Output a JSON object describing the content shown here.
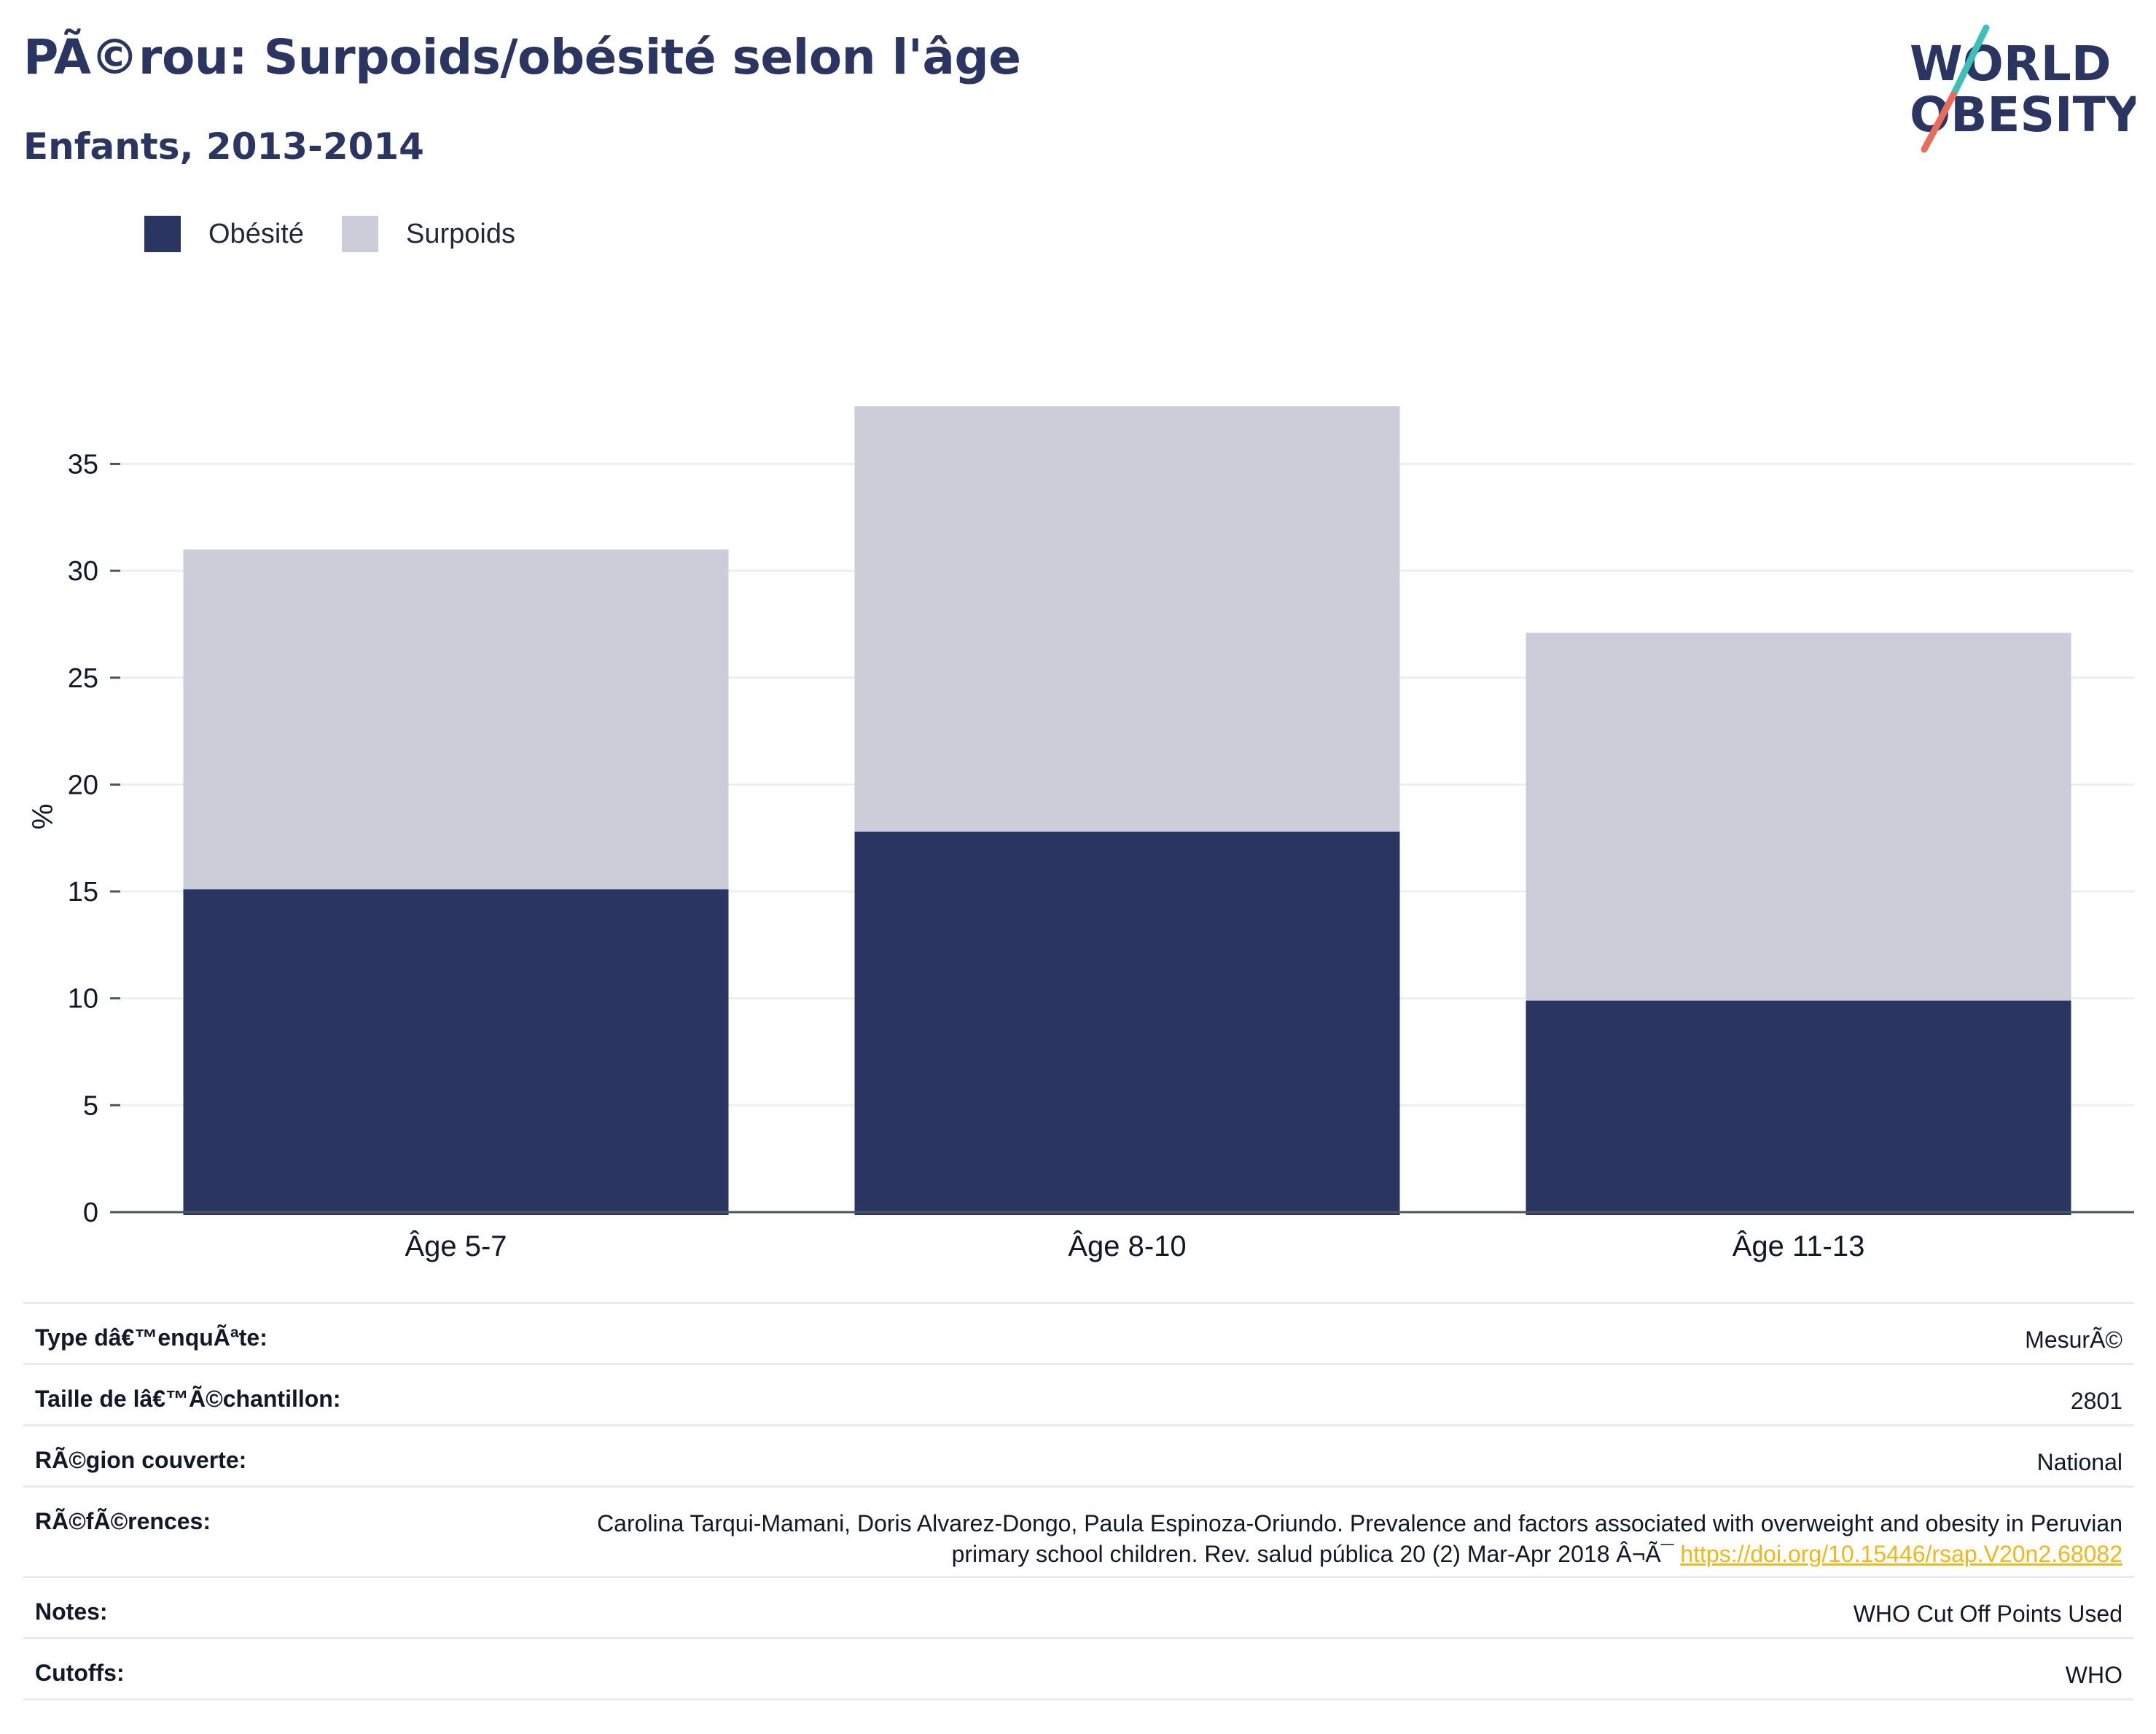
{
  "header": {
    "title": "PÃ©rou: Surpoids/obésité selon l'âge",
    "subtitle": "Enfants, 2013-2014"
  },
  "logo": {
    "line1": "WORLD",
    "line2": "OBESITY",
    "colors": {
      "text": "#2a3562",
      "slash_top": "#3cbfb8",
      "slash_bottom": "#ea6b5a"
    }
  },
  "colors": {
    "obesity": "#2a3562",
    "overweight": "#cbcdd8",
    "grid": "#eceef3",
    "axis": "#4b5563",
    "link": "#f2b619"
  },
  "chart_data": {
    "type": "bar",
    "stacked": true,
    "categories": [
      "Âge 5-7",
      "Âge 8-10",
      "Âge 11-13"
    ],
    "series": [
      {
        "name": "Obésité",
        "values": [
          15.1,
          17.8,
          9.9
        ],
        "color": "#2a3562"
      },
      {
        "name": "Surpoids",
        "values": [
          15.9,
          19.9,
          17.2
        ],
        "color": "#cbcdd8"
      }
    ],
    "totals": [
      31.0,
      37.7,
      27.1
    ],
    "ylabel": "%",
    "xlabel": "",
    "ylim": [
      0,
      40
    ],
    "yticks": [
      0,
      5,
      10,
      15,
      20,
      25,
      30,
      35
    ],
    "grid": true,
    "legend_position": "top-left"
  },
  "info": {
    "survey_type": {
      "label": "Type dâ€™enquÃªte:",
      "value": "MesurÃ©"
    },
    "sample_size": {
      "label": "Taille de lâ€™Ã©chantillon:",
      "value": "2801"
    },
    "region": {
      "label": "RÃ©gion couverte:",
      "value": "National"
    },
    "references": {
      "label": "RÃ©fÃ©rences:",
      "text": "Carolina Tarqui-Mamani, Doris Alvarez-Dongo, Paula Espinoza-Oriundo. Prevalence and factors associated with overweight and obesity in Peruvian primary school children. Rev. salud pública 20 (2) Mar-Apr 2018 Â¬Ã¯ ",
      "link": "https://doi.org/10.15446/rsap.V20n2.68082"
    },
    "notes": {
      "label": "Notes:",
      "value": "WHO Cut Off Points Used"
    },
    "cutoffs": {
      "label": "Cutoffs:",
      "value": "WHO"
    }
  }
}
